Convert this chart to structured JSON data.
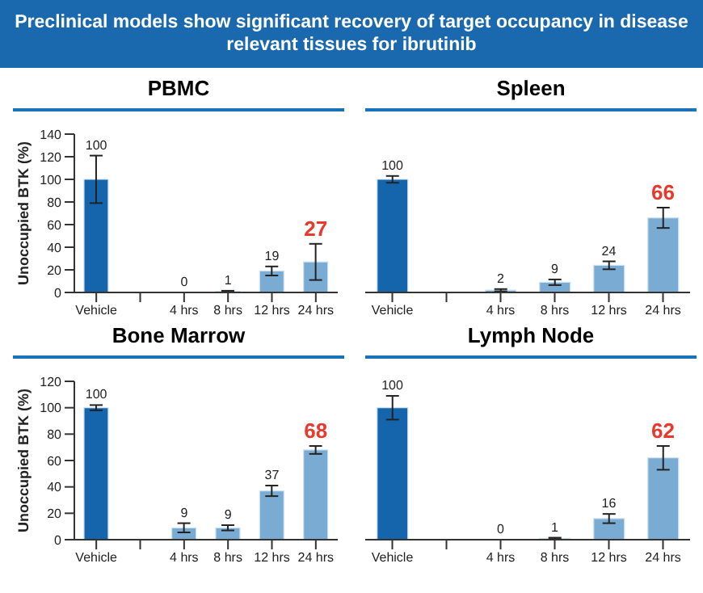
{
  "chart_data": [
    {
      "type": "bar",
      "title": "PBMC",
      "annotations": [
        "Preclinical models show significant recovery of target occupancy in disease relevant tissues for ibrutinib",
        {
          "text": "27",
          "x": "24 hrs",
          "y": 27
        }
      ],
      "ylabel": "Unoccupied BTK (%)",
      "categories": [
        "Vehicle",
        null,
        "4 hrs",
        "8 hrs",
        "12 hrs",
        "24 hrs"
      ],
      "values": [
        100,
        null,
        0,
        1,
        19,
        27
      ],
      "errors": [
        21,
        null,
        null,
        0.5,
        4,
        16
      ],
      "value_labels": [
        "100",
        null,
        "0",
        "1",
        "19",
        null
      ],
      "colors": [
        "#1565ad",
        null,
        "#7aacd3",
        "#7aacd3",
        "#7aacd3",
        "#7aacd3"
      ],
      "ylim": [
        0,
        140
      ],
      "yticks": [
        0,
        20,
        40,
        60,
        80,
        100,
        120,
        140
      ]
    },
    {
      "type": "bar",
      "title": "Spleen",
      "annotations": [
        {
          "text": "66",
          "x": "24 hrs",
          "y": 66
        }
      ],
      "categories": [
        "Vehicle",
        null,
        "4 hrs",
        "8 hrs",
        "12 hrs",
        "24 hrs"
      ],
      "values": [
        100,
        null,
        2,
        9,
        24,
        66
      ],
      "errors": [
        3,
        null,
        1,
        2.5,
        3.5,
        9
      ],
      "value_labels": [
        "100",
        null,
        "2",
        "9",
        "24",
        null
      ],
      "colors": [
        "#1565ad",
        null,
        "#7aacd3",
        "#7aacd3",
        "#7aacd3",
        "#7aacd3"
      ],
      "ylim": [
        0,
        140
      ],
      "tick_labels": "x"
    },
    {
      "type": "bar",
      "title": "Bone Marrow",
      "annotations": [
        {
          "text": "68",
          "x": "24 hrs",
          "y": 68
        }
      ],
      "ylabel": "Unoccupied BTK (%)",
      "categories": [
        "Vehicle",
        null,
        "4 hrs",
        "8 hrs",
        "12 hrs",
        "24 hrs"
      ],
      "values": [
        100,
        null,
        9,
        9,
        37,
        68
      ],
      "errors": [
        2,
        null,
        3.5,
        2,
        4,
        3
      ],
      "value_labels": [
        "100",
        null,
        "9",
        "9",
        "37",
        null
      ],
      "colors": [
        "#1565ad",
        null,
        "#7aacd3",
        "#7aacd3",
        "#7aacd3",
        "#7aacd3"
      ],
      "ylim": [
        0,
        120
      ],
      "yticks": [
        0,
        20,
        40,
        60,
        80,
        100,
        120
      ]
    },
    {
      "type": "bar",
      "title": "Lymph Node",
      "annotations": [
        {
          "text": "62",
          "x": "24 hrs",
          "y": 62
        }
      ],
      "categories": [
        "Vehicle",
        null,
        "4 hrs",
        "8 hrs",
        "12 hrs",
        "24 hrs"
      ],
      "values": [
        100,
        null,
        0,
        1,
        16,
        62
      ],
      "errors": [
        9,
        null,
        null,
        0.5,
        3.5,
        9
      ],
      "value_labels": [
        "100",
        null,
        "0",
        "1",
        "16",
        null
      ],
      "colors": [
        "#1565ad",
        null,
        "#7aacd3",
        "#7aacd3",
        "#7aacd3",
        "#7aacd3"
      ],
      "ylim": [
        0,
        120
      ],
      "tick_labels": "x"
    }
  ]
}
